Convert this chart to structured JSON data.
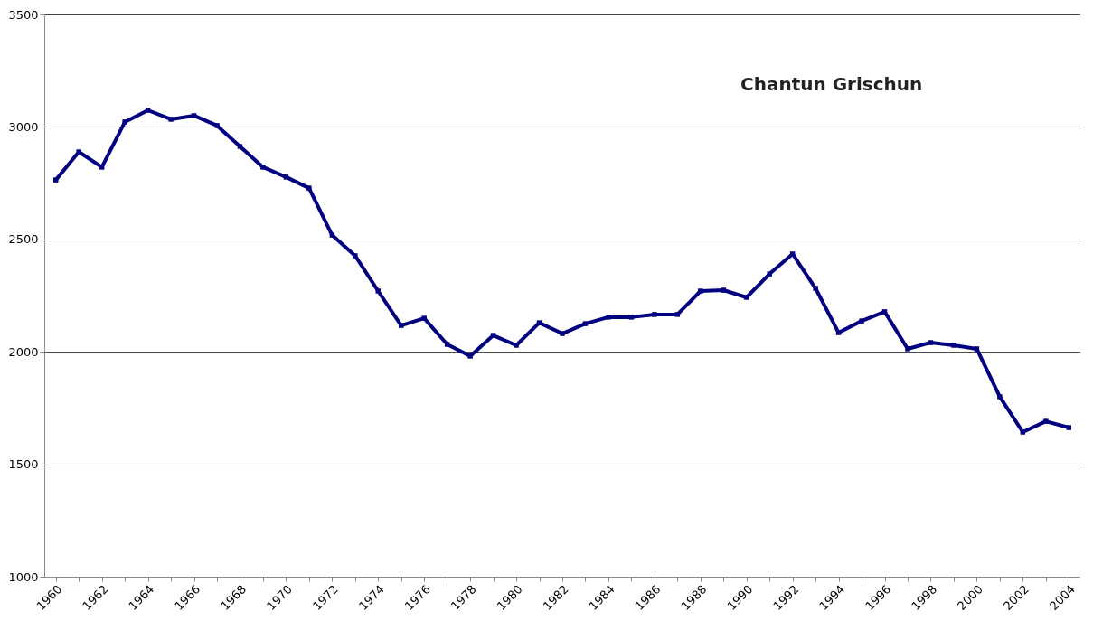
{
  "chart_data": {
    "type": "line",
    "title": "Chantun Grischun",
    "categories": [
      "1960",
      null,
      "1962",
      null,
      "1964",
      null,
      "1966",
      null,
      "1968",
      null,
      "1970",
      null,
      "1972",
      null,
      "1974",
      null,
      "1976",
      null,
      "1978",
      null,
      "1980",
      null,
      "1982",
      null,
      "1984",
      null,
      "1986",
      null,
      "1988",
      null,
      "1990",
      null,
      "1992",
      null,
      "1994",
      null,
      "1996",
      null,
      "1998",
      null,
      "2000",
      null,
      "2002",
      null,
      "2004"
    ],
    "series": [
      {
        "color": "#000080",
        "values": [
          2764,
          2889,
          2821,
          3022,
          3074,
          3034,
          3050,
          3006,
          2913,
          2821,
          2777,
          2728,
          2519,
          2427,
          2270,
          2117,
          2149,
          2033,
          1981,
          2073,
          2029,
          2129,
          2081,
          2125,
          2154,
          2154,
          2166,
          2166,
          2270,
          2274,
          2242,
          2346,
          2435,
          2282,
          2085,
          2137,
          2178,
          2013,
          2041,
          2029,
          2013,
          1800,
          1643,
          1691,
          1663
        ]
      }
    ],
    "ylim": [
      1000,
      3500
    ],
    "yticks": [
      1000,
      1500,
      2000,
      2500,
      3000,
      3500
    ],
    "grid": "y",
    "marker": "square",
    "line_style": "solid"
  }
}
